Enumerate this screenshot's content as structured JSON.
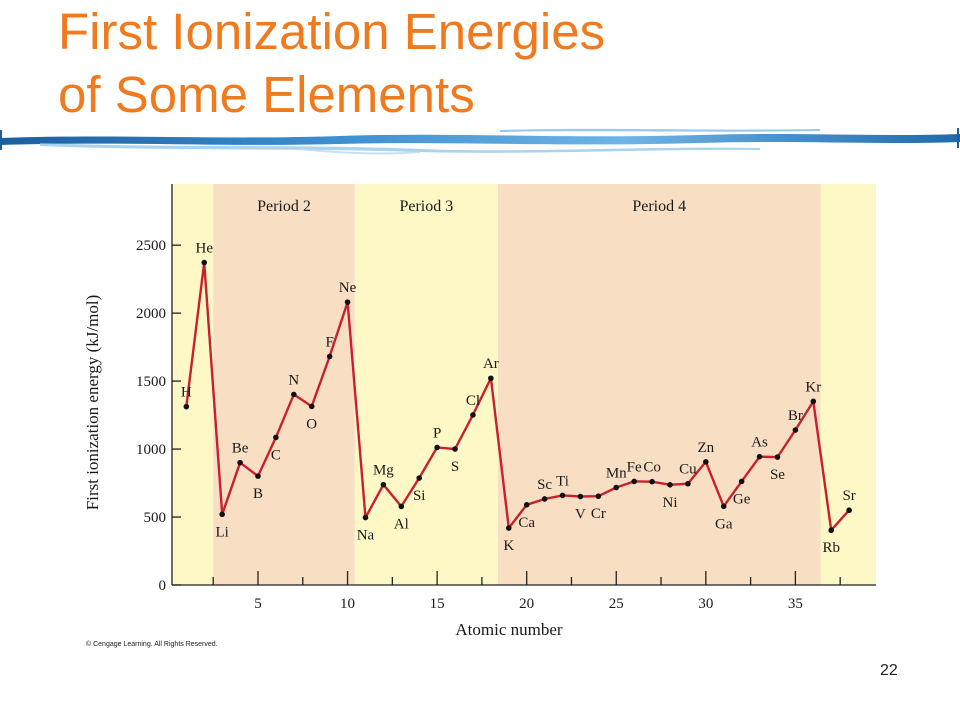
{
  "slide": {
    "title_line1": "First Ionization Energies",
    "title_line2": "of Some Elements",
    "copyright": "© Cengage Learning. All Rights Reserved.",
    "page_number": "22",
    "title_color": "#f07a1e"
  },
  "chart_data": {
    "type": "line",
    "xlabel": "Atomic number",
    "ylabel": "First ionization energy (kJ/mol)",
    "xlim": [
      0.2,
      39.5
    ],
    "ylim": [
      0,
      2950
    ],
    "x_ticks": [
      5,
      10,
      15,
      20,
      25,
      30,
      35
    ],
    "y_ticks": [
      0,
      500,
      1000,
      1500,
      2000,
      2500
    ],
    "line_color": "#c8202e",
    "bands": [
      {
        "label": "",
        "from": 0.2,
        "to": 2.5,
        "color": "#fdf8c6"
      },
      {
        "label": "Period 2",
        "from": 2.5,
        "to": 10.4,
        "color": "#f8dfc4"
      },
      {
        "label": "Period 3",
        "from": 10.4,
        "to": 18.4,
        "color": "#fdf8c6"
      },
      {
        "label": "Period 4",
        "from": 18.4,
        "to": 36.4,
        "color": "#f8dfc4"
      },
      {
        "label": "",
        "from": 36.4,
        "to": 39.5,
        "color": "#fdf8c6"
      }
    ],
    "series": [
      {
        "x": [
          1,
          2,
          3,
          4,
          5,
          6,
          7,
          8,
          9,
          10,
          11,
          12,
          13,
          14,
          15,
          16,
          17,
          18,
          19,
          20,
          21,
          22,
          23,
          24,
          25,
          26,
          27,
          28,
          29,
          30,
          31,
          32,
          33,
          34,
          35,
          36,
          37,
          38
        ],
        "y": [
          1312,
          2372,
          520,
          900,
          801,
          1086,
          1402,
          1314,
          1681,
          2081,
          496,
          738,
          578,
          787,
          1012,
          1000,
          1251,
          1521,
          419,
          590,
          633,
          659,
          651,
          653,
          717,
          762,
          760,
          737,
          745,
          906,
          579,
          762,
          944,
          941,
          1140,
          1351,
          403,
          550
        ],
        "labels": [
          "H",
          "He",
          "Li",
          "Be",
          "B",
          "C",
          "N",
          "O",
          "F",
          "Ne",
          "Na",
          "Mg",
          "Al",
          "Si",
          "P",
          "S",
          "Cl",
          "Ar",
          "K",
          "Ca",
          "Sc",
          "Ti",
          "V",
          "Cr",
          "Mn",
          "Fe",
          "Co",
          "Ni",
          "Cu",
          "Zn",
          "Ga",
          "Ge",
          "As",
          "Se",
          "Br",
          "Kr",
          "Rb",
          "Sr"
        ]
      }
    ]
  }
}
